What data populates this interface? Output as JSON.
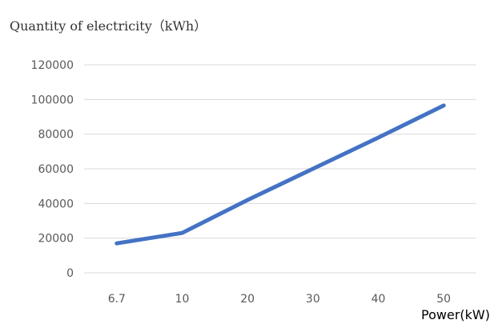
{
  "chart_data": {
    "type": "line",
    "title": "",
    "ylabel": "Quantity of electricity（kWh）",
    "xlabel": "Power(kW)",
    "categories": [
      "6.7",
      "10",
      "20",
      "30",
      "40",
      "50"
    ],
    "series": [
      {
        "values": [
          17000,
          23000,
          42000,
          60000,
          78000,
          96500
        ]
      }
    ],
    "ylim": [
      0,
      120000
    ],
    "yticks": [
      "0",
      "20000",
      "40000",
      "60000",
      "80000",
      "100000",
      "120000"
    ],
    "grid": true,
    "legend": "none",
    "colors": {
      "line": "#4472c4",
      "grid": "#d9d9d9",
      "tick_text": "#595959"
    }
  }
}
